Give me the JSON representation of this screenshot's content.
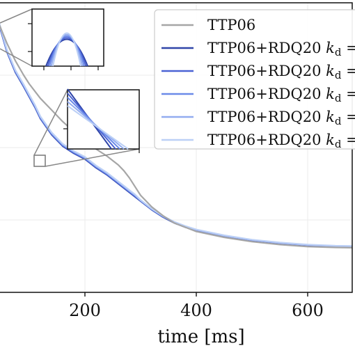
{
  "chart_data": {
    "type": "line",
    "xlabel": "time [ms]",
    "x_ticks": [
      200,
      400,
      600
    ],
    "xlim": [
      45,
      680
    ],
    "ylim": [
      0,
      1
    ],
    "grid": true,
    "legend_placement": "top-right",
    "x": [
      45,
      60,
      75,
      90,
      100,
      110,
      120,
      140,
      160,
      180,
      200,
      220,
      240,
      260,
      270,
      280,
      290,
      300,
      320,
      340,
      360,
      380,
      400,
      450,
      500,
      550,
      600,
      650,
      680
    ],
    "series": [
      {
        "name": "TTP06",
        "color": "#a6a6a6",
        "values": [
          0.93,
          0.86,
          0.8,
          0.75,
          0.72,
          0.695,
          0.67,
          0.63,
          0.59,
          0.555,
          0.52,
          0.495,
          0.47,
          0.44,
          0.42,
          0.395,
          0.365,
          0.335,
          0.295,
          0.265,
          0.24,
          0.225,
          0.21,
          0.19,
          0.175,
          0.165,
          0.158,
          0.155,
          0.154
        ]
      },
      {
        "name": "TTP06+RDQ20 k_d =",
        "color": "#2f45a8",
        "values": [
          0.93,
          0.83,
          0.76,
          0.71,
          0.675,
          0.64,
          0.6,
          0.545,
          0.505,
          0.48,
          0.46,
          0.43,
          0.405,
          0.375,
          0.36,
          0.345,
          0.33,
          0.315,
          0.285,
          0.26,
          0.24,
          0.225,
          0.215,
          0.195,
          0.18,
          0.17,
          0.163,
          0.159,
          0.158
        ]
      },
      {
        "name": "TTP06+RDQ20 k_d =",
        "color": "#4a63d4",
        "values": [
          0.932,
          0.832,
          0.762,
          0.712,
          0.677,
          0.642,
          0.602,
          0.547,
          0.507,
          0.482,
          0.462,
          0.432,
          0.407,
          0.377,
          0.362,
          0.347,
          0.332,
          0.316,
          0.286,
          0.261,
          0.241,
          0.226,
          0.215,
          0.195,
          0.18,
          0.17,
          0.163,
          0.159,
          0.158
        ]
      },
      {
        "name": "TTP06+RDQ20 k_d =",
        "color": "#6b8ae8",
        "values": [
          0.934,
          0.834,
          0.764,
          0.714,
          0.679,
          0.644,
          0.604,
          0.549,
          0.509,
          0.484,
          0.464,
          0.434,
          0.409,
          0.379,
          0.364,
          0.349,
          0.334,
          0.317,
          0.287,
          0.262,
          0.242,
          0.227,
          0.216,
          0.196,
          0.181,
          0.171,
          0.164,
          0.16,
          0.159
        ]
      },
      {
        "name": "TTP06+RDQ20 k_d =",
        "color": "#92acf0",
        "values": [
          0.936,
          0.836,
          0.766,
          0.716,
          0.681,
          0.646,
          0.606,
          0.551,
          0.511,
          0.486,
          0.466,
          0.436,
          0.411,
          0.381,
          0.366,
          0.351,
          0.336,
          0.318,
          0.288,
          0.263,
          0.243,
          0.228,
          0.216,
          0.196,
          0.181,
          0.171,
          0.164,
          0.16,
          0.159
        ]
      },
      {
        "name": "TTP06+RDQ20 k_d =",
        "color": "#bcd0f6",
        "values": [
          0.938,
          0.838,
          0.768,
          0.718,
          0.683,
          0.648,
          0.608,
          0.553,
          0.513,
          0.488,
          0.468,
          0.438,
          0.413,
          0.383,
          0.368,
          0.353,
          0.338,
          0.319,
          0.289,
          0.264,
          0.244,
          0.229,
          0.217,
          0.197,
          0.182,
          0.172,
          0.165,
          0.161,
          0.16
        ]
      }
    ]
  }
}
